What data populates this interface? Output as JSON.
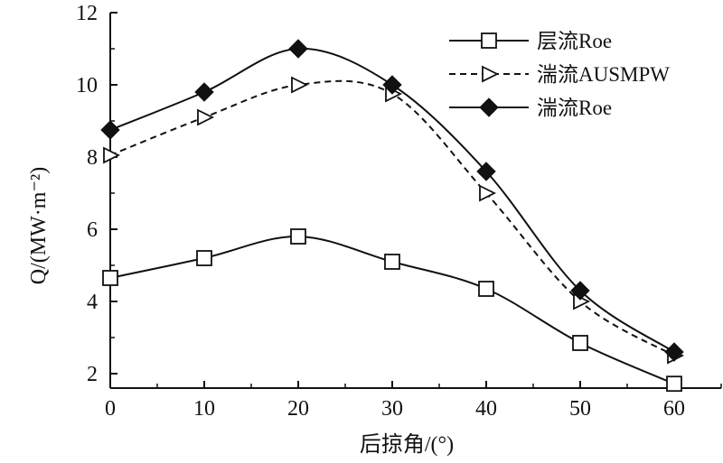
{
  "chart_data": {
    "type": "line",
    "x": [
      0,
      10,
      20,
      30,
      40,
      50,
      60
    ],
    "xlabel": "后掠角/(°)",
    "ylabel": "Q/(MW·m⁻²)",
    "xlim": [
      0,
      65
    ],
    "ylim": [
      1.6,
      12
    ],
    "xticks": [
      0,
      10,
      20,
      30,
      40,
      50,
      60
    ],
    "yticks": [
      2,
      4,
      6,
      8,
      10,
      12
    ],
    "grid": false,
    "legend_position": "top-right",
    "series": [
      {
        "name": "层流Roe",
        "marker": "square-open",
        "line": "solid",
        "color": "#111111",
        "values": [
          4.65,
          5.2,
          5.8,
          5.1,
          4.35,
          2.85,
          1.72
        ]
      },
      {
        "name": "湍流AUSMPW",
        "marker": "triangle-right-open",
        "line": "dashed",
        "color": "#111111",
        "values": [
          8.05,
          9.1,
          10.0,
          9.75,
          7.0,
          4.0,
          2.5
        ]
      },
      {
        "name": "湍流Roe",
        "marker": "diamond-filled",
        "line": "solid",
        "color": "#111111",
        "values": [
          8.75,
          9.8,
          11.0,
          10.0,
          7.6,
          4.3,
          2.6
        ]
      }
    ]
  }
}
